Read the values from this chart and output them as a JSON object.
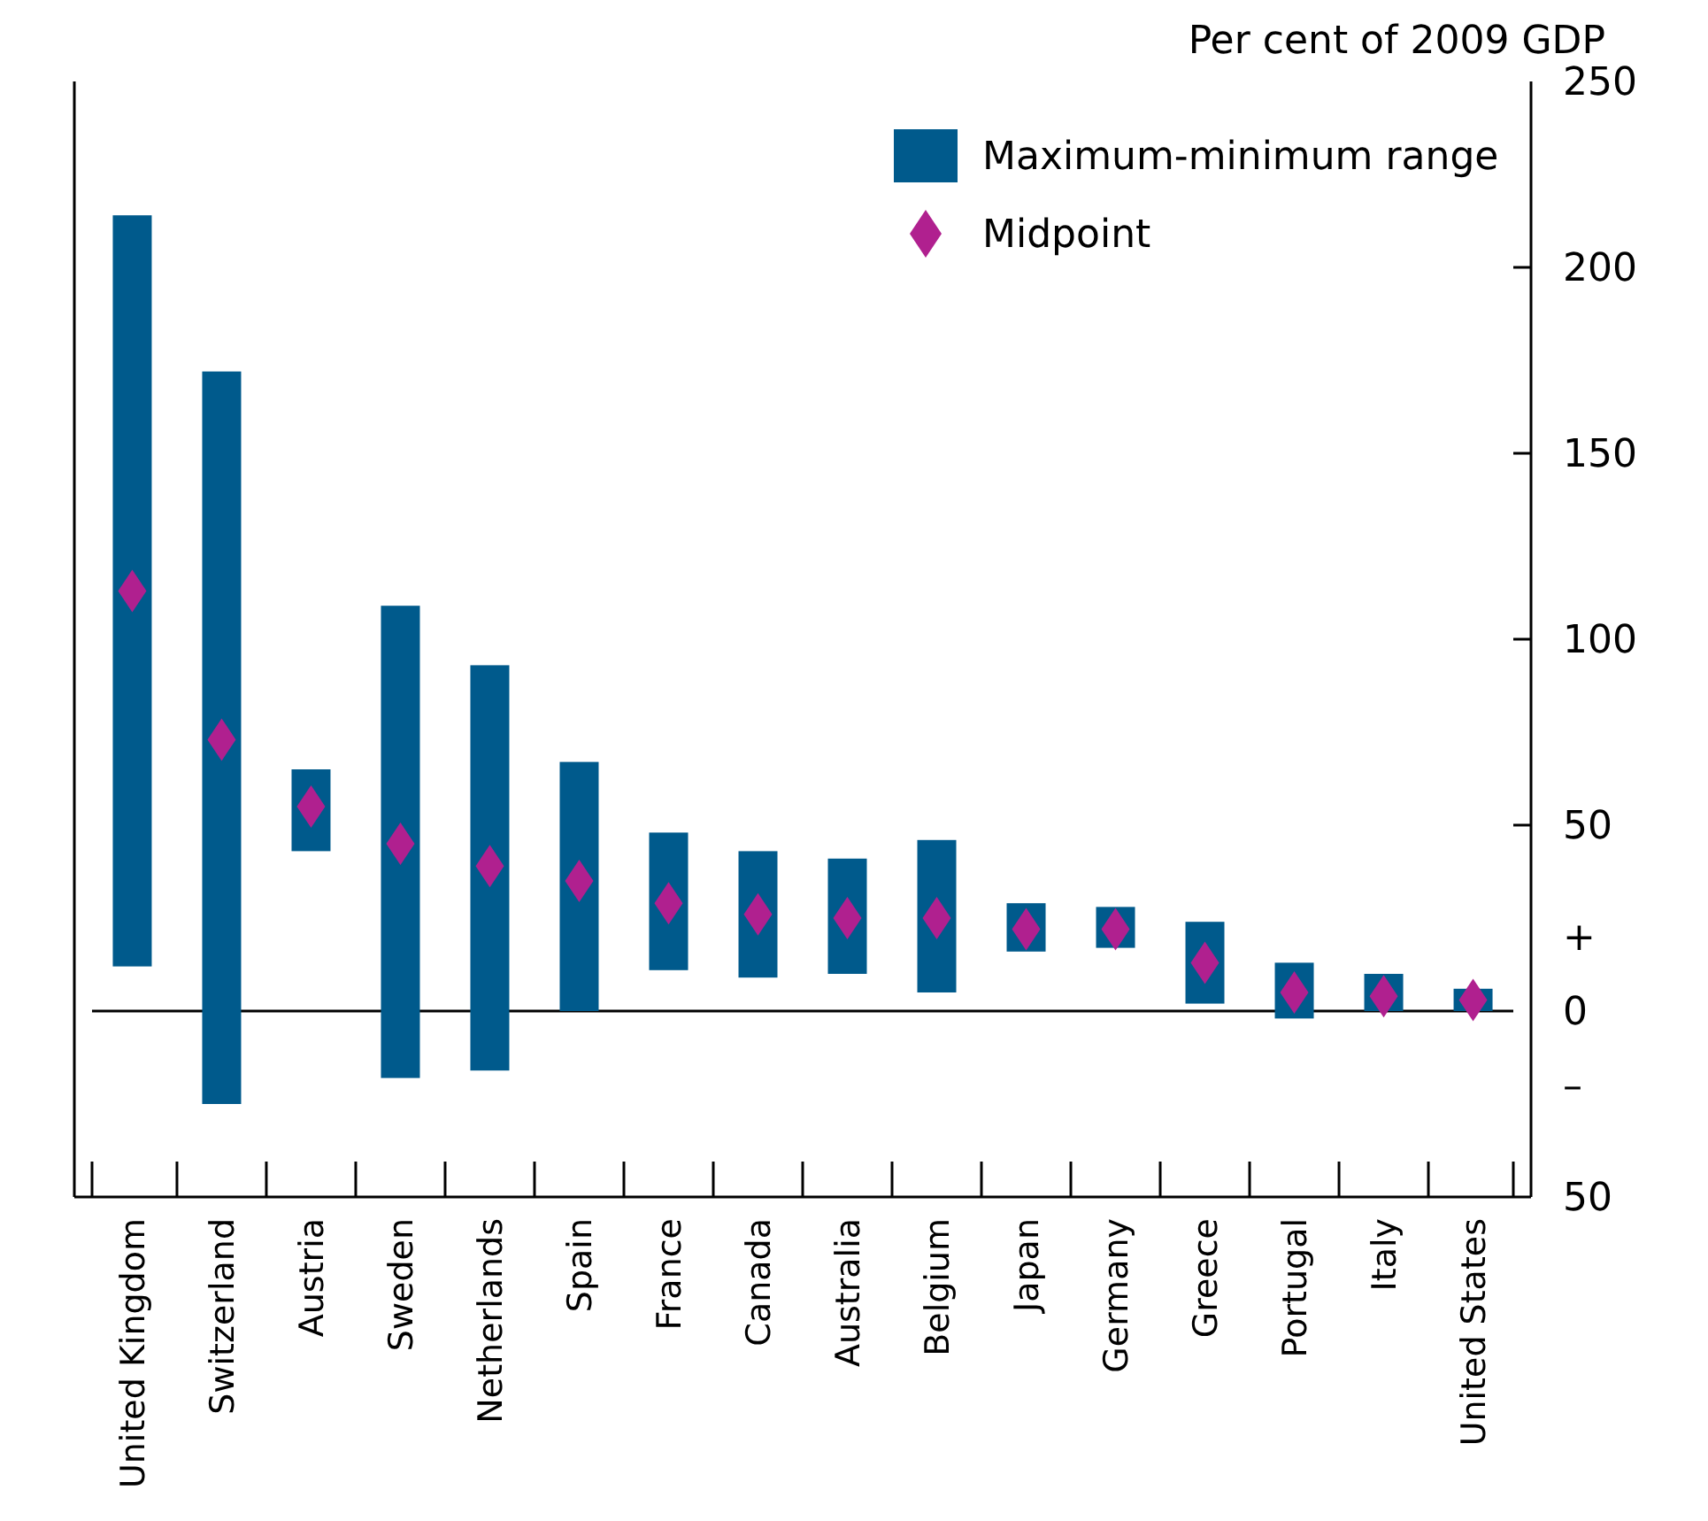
{
  "chart_data": {
    "type": "bar",
    "ylabel": "Per cent of 2009 GDP",
    "categories": [
      "United Kingdom",
      "Switzerland",
      "Austria",
      "Sweden",
      "Netherlands",
      "Spain",
      "France",
      "Canada",
      "Australia",
      "Belgium",
      "Japan",
      "Germany",
      "Greece",
      "Portugal",
      "Italy",
      "United States"
    ],
    "series": [
      {
        "name": "Maximum-minimum range",
        "type": "bar",
        "color": "#005a8c",
        "base": [
          12,
          -25,
          43,
          -18,
          -16,
          0,
          11,
          9,
          10,
          5,
          16,
          17,
          2,
          -2,
          0,
          0
        ],
        "values": [
          202,
          197,
          22,
          127,
          109,
          67,
          37,
          34,
          31,
          41,
          13,
          11,
          22,
          15,
          10,
          6
        ]
      },
      {
        "name": "Midpoint",
        "type": "scatter",
        "color": "#b0208f",
        "marker": "diamond",
        "x": [
          "United Kingdom",
          "Switzerland",
          "Austria",
          "Sweden",
          "Netherlands",
          "Spain",
          "France",
          "Canada",
          "Australia",
          "Belgium",
          "Japan",
          "Germany",
          "Greece",
          "Portugal",
          "Italy",
          "United States"
        ],
        "values": [
          113,
          73,
          55,
          45,
          39,
          35,
          29,
          26,
          25,
          25,
          22,
          22,
          13,
          5,
          4,
          3
        ]
      }
    ],
    "ylim": [
      -50,
      250
    ],
    "yticks": [
      {
        "value": -50,
        "label": "50"
      },
      {
        "value": -20,
        "label": "–"
      },
      0,
      {
        "value": 20,
        "label": "+"
      },
      50,
      100,
      150,
      200,
      250
    ],
    "ref_lines": [
      {
        "axis": "y",
        "value": 0,
        "color": "#000000"
      }
    ],
    "legend": "top right",
    "grid": false
  }
}
